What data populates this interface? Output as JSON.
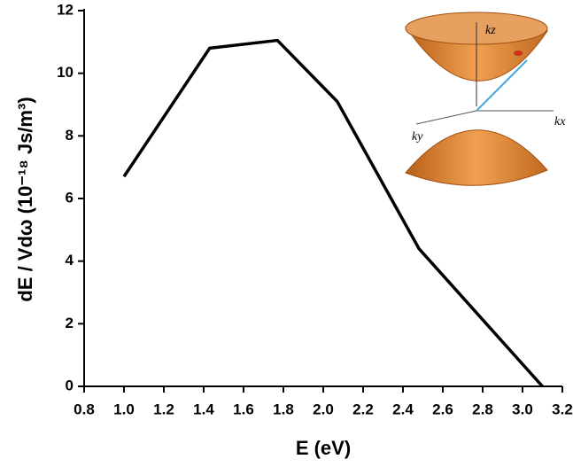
{
  "chart_data": {
    "type": "line",
    "x": [
      1.0,
      1.43,
      1.77,
      2.07,
      2.48,
      3.1
    ],
    "values": [
      6.7,
      10.8,
      11.05,
      9.1,
      4.4,
      0
    ],
    "color": "#000000",
    "xlabel": "E (eV)",
    "ylabel": "dE / Vdω (10⁻¹⁸ Js/m³)",
    "xlim": [
      0.8,
      3.2
    ],
    "xticks": [
      0.8,
      {
        "value": 1,
        "label": "1.0"
      },
      1.2,
      1.4,
      1.6,
      1.8,
      {
        "value": 2,
        "label": "2.0"
      },
      2.2,
      2.4,
      2.6,
      2.8,
      {
        "value": 3,
        "label": "3.0"
      },
      3.2
    ],
    "ylim": [
      0,
      12
    ],
    "yticks": [
      0,
      2,
      4,
      6,
      8,
      10,
      12
    ],
    "annotations": [
      "kz",
      "ky",
      "kx"
    ]
  }
}
